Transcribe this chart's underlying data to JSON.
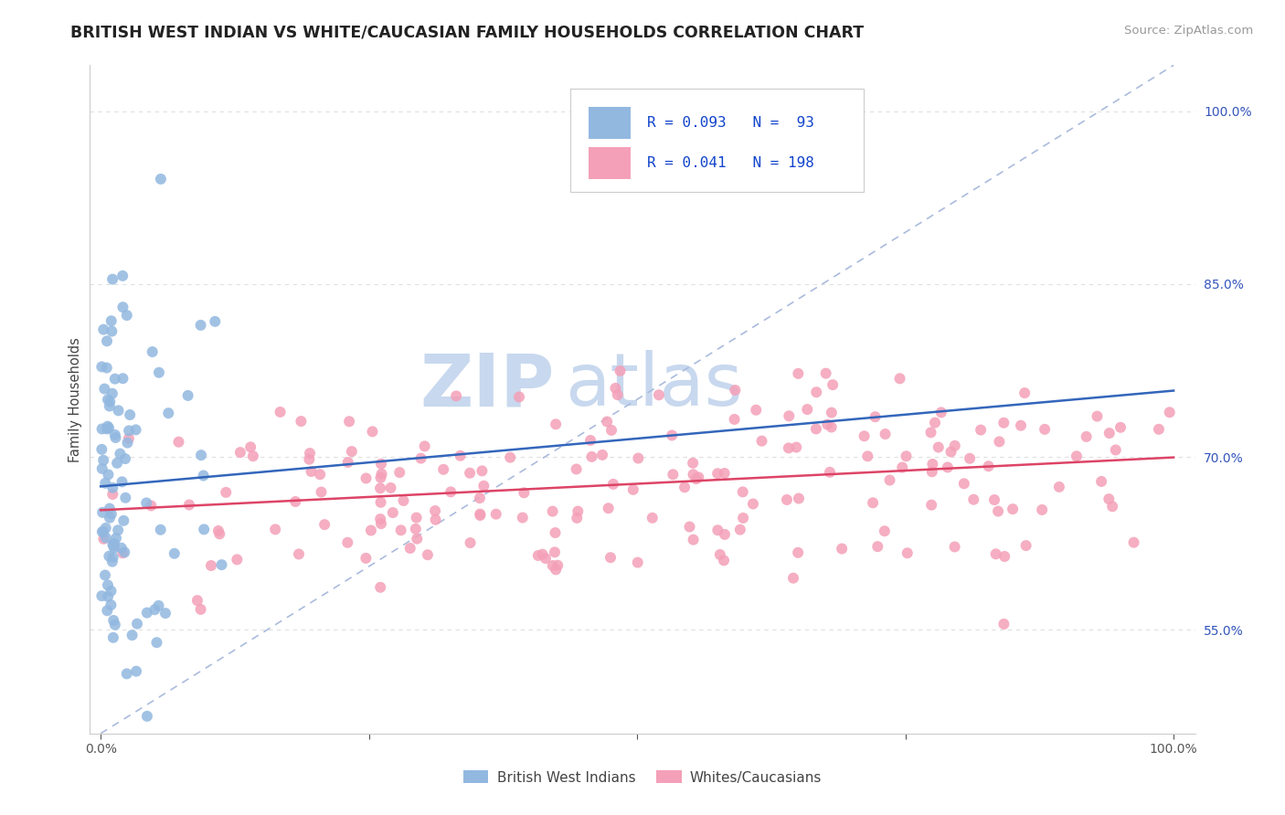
{
  "title": "BRITISH WEST INDIAN VS WHITE/CAUCASIAN FAMILY HOUSEHOLDS CORRELATION CHART",
  "source": "Source: ZipAtlas.com",
  "ylabel": "Family Households",
  "blue_R": 0.093,
  "blue_N": 93,
  "pink_R": 0.041,
  "pink_N": 198,
  "blue_color": "#92b8e0",
  "pink_color": "#f4a0b8",
  "blue_line_color": "#3366bb",
  "pink_line_color": "#dd4466",
  "diagonal_color": "#aabbdd",
  "watermark_zip_color": "#c8d8ee",
  "watermark_atlas_color": "#c8d8ee",
  "legend_label_blue": "British West Indians",
  "legend_label_pink": "Whites/Caucasians",
  "ylim_low": 0.46,
  "ylim_high": 1.04,
  "xlim_low": -0.01,
  "xlim_high": 1.02,
  "y_tick_vals": [
    0.55,
    0.7,
    0.85,
    1.0
  ],
  "y_tick_labels": [
    "55.0%",
    "70.0%",
    "85.0%",
    "100.0%"
  ]
}
